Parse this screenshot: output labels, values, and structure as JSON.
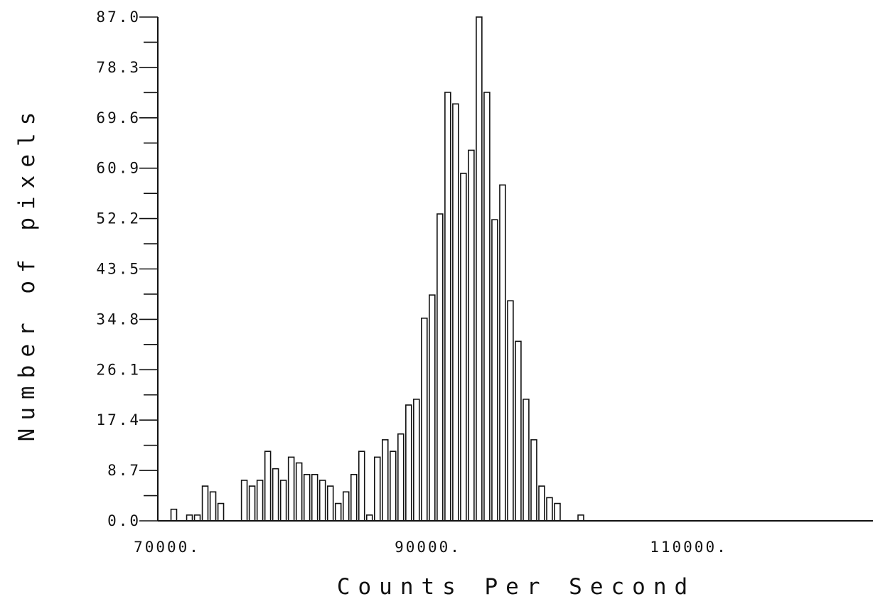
{
  "chart_data": {
    "type": "bar",
    "xlabel": "Counts Per Second",
    "ylabel": "Number of pixels",
    "ylim": [
      0,
      87
    ],
    "xlim": [
      70000,
      120000
    ],
    "y_ticks": [
      "0.0",
      "8.7",
      "17.4",
      "26.1",
      "34.8",
      "43.5",
      "52.2",
      "60.9",
      "69.6",
      "78.3",
      "87.0"
    ],
    "x_ticks": [
      {
        "value": 70000,
        "label": "70000."
      },
      {
        "value": 90000,
        "label": "90000."
      },
      {
        "value": 110000,
        "label": "110000."
      }
    ],
    "bin_width": 600,
    "bin_start": 70300,
    "values": [
      2,
      0,
      1,
      1,
      6,
      5,
      3,
      0,
      0,
      7,
      6,
      7,
      12,
      9,
      7,
      11,
      10,
      8,
      8,
      7,
      6,
      3,
      5,
      8,
      12,
      1,
      11,
      14,
      12,
      15,
      20,
      21,
      35,
      39,
      53,
      74,
      72,
      60,
      64,
      87,
      74,
      52,
      58,
      38,
      31,
      21,
      14,
      6,
      4,
      3,
      0,
      0,
      1
    ],
    "grid": false,
    "legend": "none"
  }
}
